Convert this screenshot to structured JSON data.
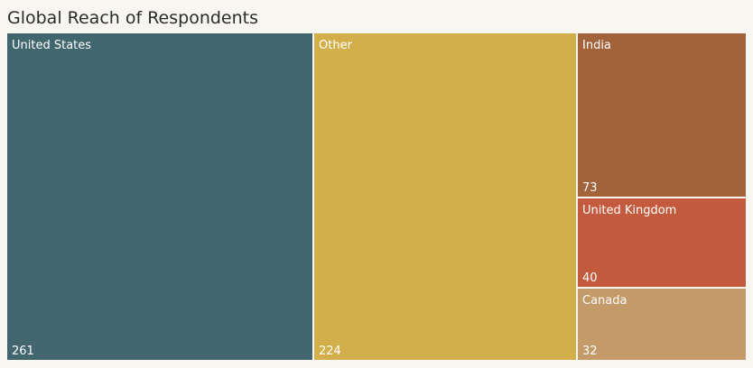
{
  "chart_data": {
    "type": "treemap",
    "title": "Global Reach of Respondents",
    "items": [
      {
        "label": "United States",
        "value": 261,
        "color": "#41666e"
      },
      {
        "label": "Other",
        "value": 224,
        "color": "#d2af4a"
      },
      {
        "label": "India",
        "value": 73,
        "color": "#a2623a"
      },
      {
        "label": "United Kingdom",
        "value": 40,
        "color": "#c35a3e"
      },
      {
        "label": "Canada",
        "value": 32,
        "color": "#c49a68"
      }
    ]
  }
}
